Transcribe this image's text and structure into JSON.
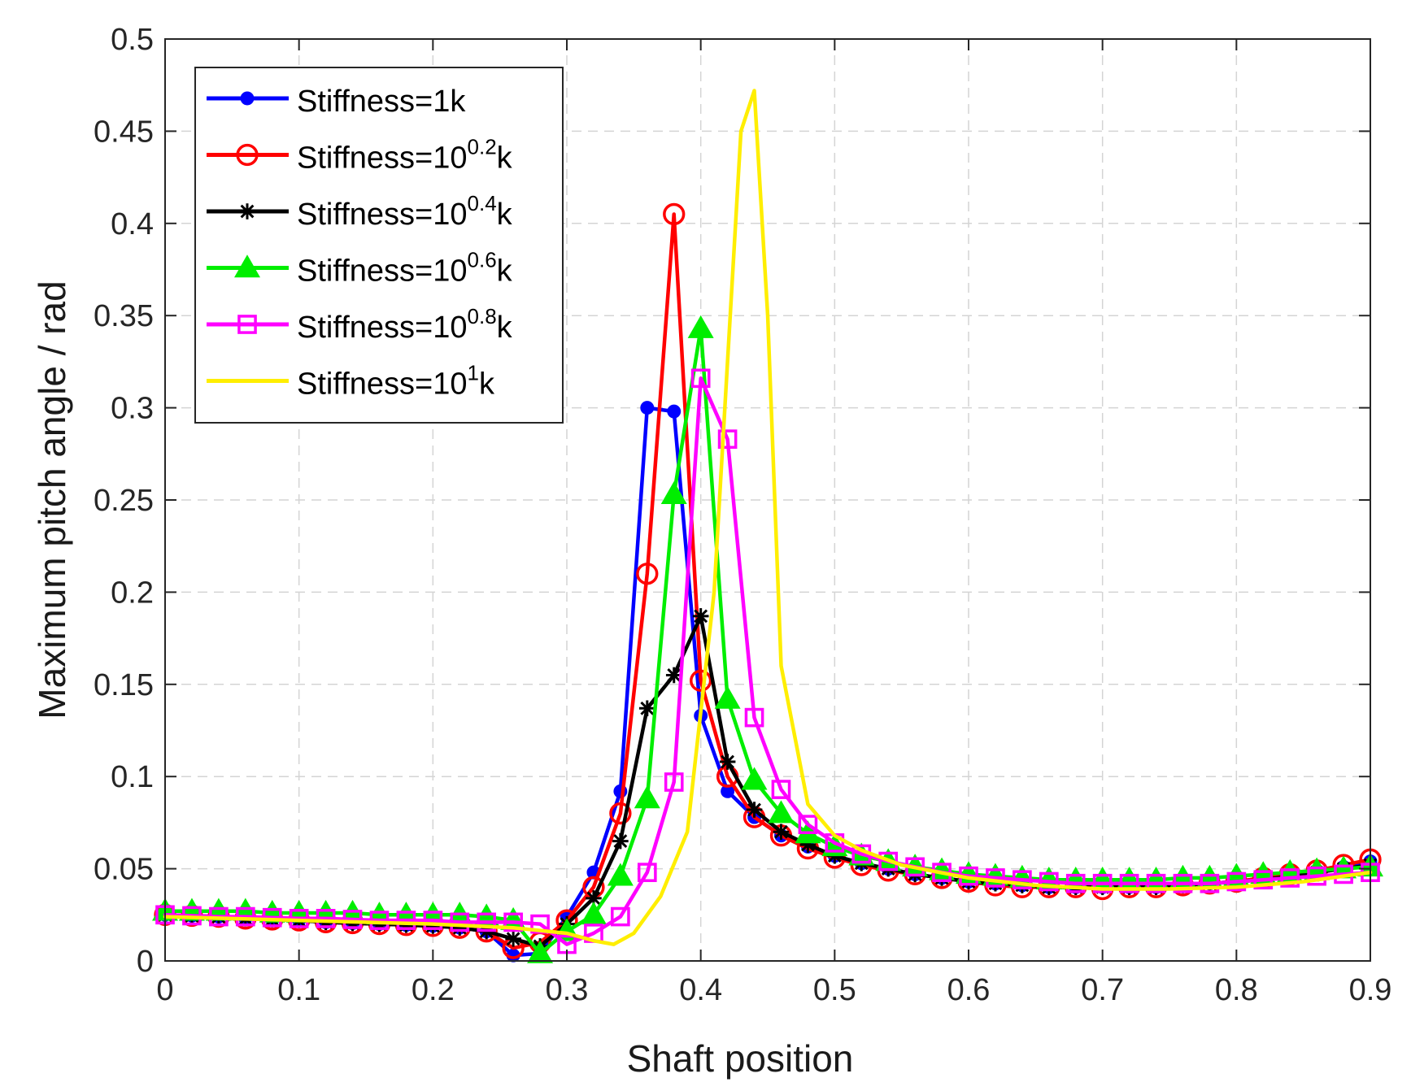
{
  "chart_data": {
    "type": "line",
    "title": "",
    "xlabel": "Shaft position",
    "ylabel": "Maximum pitch angle / rad",
    "xlim": [
      0,
      0.9
    ],
    "ylim": [
      0,
      0.5
    ],
    "xticks": [
      0,
      0.1,
      0.2,
      0.3,
      0.4,
      0.5,
      0.6,
      0.7,
      0.8,
      0.9
    ],
    "xtick_labels": [
      "0",
      "0.1",
      "0.2",
      "0.3",
      "0.4",
      "0.5",
      "0.6",
      "0.7",
      "0.8",
      "0.9"
    ],
    "yticks": [
      0,
      0.05,
      0.1,
      0.15,
      0.2,
      0.25,
      0.3,
      0.35,
      0.4,
      0.45,
      0.5
    ],
    "ytick_labels": [
      "0",
      "0.05",
      "0.1",
      "0.15",
      "0.2",
      "0.25",
      "0.3",
      "0.35",
      "0.4",
      "0.45",
      "0.5"
    ],
    "grid": true,
    "legend_position": "top-left",
    "series": [
      {
        "name": "Stiffness=1k",
        "label_base": "Stiffness=1k",
        "label_sup": "",
        "label_tail": "",
        "color": "#0000ff",
        "marker": "dot",
        "x": [
          0,
          0.02,
          0.04,
          0.06,
          0.08,
          0.1,
          0.12,
          0.14,
          0.16,
          0.18,
          0.2,
          0.22,
          0.24,
          0.26,
          0.28,
          0.3,
          0.32,
          0.34,
          0.36,
          0.38,
          0.4,
          0.42,
          0.44,
          0.46,
          0.48,
          0.5,
          0.52,
          0.54,
          0.56,
          0.58,
          0.6,
          0.62,
          0.64,
          0.66,
          0.68,
          0.7,
          0.72,
          0.74,
          0.76,
          0.78,
          0.8,
          0.82,
          0.84,
          0.86,
          0.88,
          0.9
        ],
        "y": [
          0.025,
          0.0245,
          0.024,
          0.023,
          0.0225,
          0.022,
          0.021,
          0.0205,
          0.02,
          0.0195,
          0.019,
          0.018,
          0.016,
          0.003,
          0.004,
          0.024,
          0.048,
          0.092,
          0.3,
          0.298,
          0.133,
          0.092,
          0.078,
          0.068,
          0.062,
          0.057,
          0.053,
          0.05,
          0.047,
          0.045,
          0.043,
          0.042,
          0.041,
          0.04,
          0.04,
          0.04,
          0.04,
          0.04,
          0.041,
          0.042,
          0.043,
          0.045,
          0.047,
          0.049,
          0.051,
          0.054
        ]
      },
      {
        "name": "Stiffness=10^0.2k",
        "label_base": "Stiffness=10",
        "label_sup": "0.2",
        "label_tail": "k",
        "color": "#ff0000",
        "marker": "circle",
        "x": [
          0,
          0.02,
          0.04,
          0.06,
          0.08,
          0.1,
          0.12,
          0.14,
          0.16,
          0.18,
          0.2,
          0.22,
          0.24,
          0.26,
          0.28,
          0.3,
          0.32,
          0.34,
          0.36,
          0.38,
          0.4,
          0.42,
          0.44,
          0.46,
          0.48,
          0.5,
          0.52,
          0.54,
          0.56,
          0.58,
          0.6,
          0.62,
          0.64,
          0.66,
          0.68,
          0.7,
          0.72,
          0.74,
          0.76,
          0.78,
          0.8,
          0.82,
          0.84,
          0.86,
          0.88,
          0.9
        ],
        "y": [
          0.025,
          0.0245,
          0.024,
          0.023,
          0.0225,
          0.022,
          0.021,
          0.0205,
          0.02,
          0.0195,
          0.019,
          0.018,
          0.016,
          0.007,
          0.01,
          0.022,
          0.04,
          0.08,
          0.21,
          0.405,
          0.152,
          0.1,
          0.078,
          0.068,
          0.061,
          0.056,
          0.052,
          0.049,
          0.047,
          0.045,
          0.043,
          0.041,
          0.04,
          0.04,
          0.04,
          0.039,
          0.04,
          0.04,
          0.041,
          0.042,
          0.043,
          0.045,
          0.047,
          0.049,
          0.052,
          0.055
        ]
      },
      {
        "name": "Stiffness=10^0.4k",
        "label_base": "Stiffness=10",
        "label_sup": "0.4",
        "label_tail": "k",
        "color": "#000000",
        "marker": "star",
        "x": [
          0,
          0.02,
          0.04,
          0.06,
          0.08,
          0.1,
          0.12,
          0.14,
          0.16,
          0.18,
          0.2,
          0.22,
          0.24,
          0.26,
          0.28,
          0.3,
          0.32,
          0.34,
          0.36,
          0.38,
          0.4,
          0.42,
          0.44,
          0.46,
          0.48,
          0.5,
          0.52,
          0.54,
          0.56,
          0.58,
          0.6,
          0.62,
          0.64,
          0.66,
          0.68,
          0.7,
          0.72,
          0.74,
          0.76,
          0.78,
          0.8,
          0.82,
          0.84,
          0.86,
          0.88,
          0.9
        ],
        "y": [
          0.025,
          0.0245,
          0.024,
          0.023,
          0.0225,
          0.022,
          0.021,
          0.0205,
          0.02,
          0.0195,
          0.019,
          0.018,
          0.016,
          0.012,
          0.008,
          0.02,
          0.034,
          0.065,
          0.137,
          0.155,
          0.187,
          0.108,
          0.082,
          0.07,
          0.063,
          0.057,
          0.053,
          0.05,
          0.047,
          0.045,
          0.043,
          0.042,
          0.041,
          0.04,
          0.04,
          0.04,
          0.04,
          0.04,
          0.041,
          0.042,
          0.043,
          0.044,
          0.046,
          0.048,
          0.05,
          0.052
        ]
      },
      {
        "name": "Stiffness=10^0.6k",
        "label_base": "Stiffness=10",
        "label_sup": "0.6",
        "label_tail": "k",
        "color": "#00ee00",
        "marker": "triangle",
        "x": [
          0,
          0.02,
          0.04,
          0.06,
          0.08,
          0.1,
          0.12,
          0.14,
          0.16,
          0.18,
          0.2,
          0.22,
          0.24,
          0.26,
          0.28,
          0.3,
          0.32,
          0.34,
          0.36,
          0.38,
          0.4,
          0.42,
          0.44,
          0.46,
          0.48,
          0.5,
          0.52,
          0.54,
          0.56,
          0.58,
          0.6,
          0.62,
          0.64,
          0.66,
          0.68,
          0.7,
          0.72,
          0.74,
          0.76,
          0.78,
          0.8,
          0.82,
          0.84,
          0.86,
          0.88,
          0.9
        ],
        "y": [
          0.027,
          0.027,
          0.027,
          0.027,
          0.026,
          0.026,
          0.026,
          0.026,
          0.025,
          0.025,
          0.025,
          0.025,
          0.024,
          0.022,
          0.004,
          0.016,
          0.025,
          0.046,
          0.088,
          0.253,
          0.343,
          0.142,
          0.098,
          0.08,
          0.069,
          0.062,
          0.057,
          0.054,
          0.051,
          0.049,
          0.047,
          0.046,
          0.045,
          0.044,
          0.044,
          0.044,
          0.044,
          0.044,
          0.045,
          0.045,
          0.046,
          0.047,
          0.048,
          0.049,
          0.05,
          0.051
        ]
      },
      {
        "name": "Stiffness=10^0.8k",
        "label_base": "Stiffness=10",
        "label_sup": "0.8",
        "label_tail": "k",
        "color": "#ff00ff",
        "marker": "square",
        "x": [
          0,
          0.02,
          0.04,
          0.06,
          0.08,
          0.1,
          0.12,
          0.14,
          0.16,
          0.18,
          0.2,
          0.22,
          0.24,
          0.26,
          0.28,
          0.3,
          0.32,
          0.34,
          0.36,
          0.38,
          0.4,
          0.42,
          0.44,
          0.46,
          0.48,
          0.5,
          0.52,
          0.54,
          0.56,
          0.58,
          0.6,
          0.62,
          0.64,
          0.66,
          0.68,
          0.7,
          0.72,
          0.74,
          0.76,
          0.78,
          0.8,
          0.82,
          0.84,
          0.86,
          0.88,
          0.9
        ],
        "y": [
          0.025,
          0.0245,
          0.024,
          0.024,
          0.0235,
          0.023,
          0.023,
          0.0225,
          0.022,
          0.022,
          0.022,
          0.021,
          0.021,
          0.021,
          0.02,
          0.009,
          0.015,
          0.024,
          0.048,
          0.097,
          0.316,
          0.283,
          0.132,
          0.093,
          0.074,
          0.064,
          0.058,
          0.054,
          0.051,
          0.048,
          0.046,
          0.045,
          0.044,
          0.043,
          0.042,
          0.042,
          0.042,
          0.042,
          0.042,
          0.042,
          0.043,
          0.044,
          0.045,
          0.046,
          0.047,
          0.048
        ]
      },
      {
        "name": "Stiffness=10^1k",
        "label_base": "Stiffness=10",
        "label_sup": "1",
        "label_tail": "k",
        "color": "#ffee00",
        "marker": "none",
        "x": [
          0,
          0.1,
          0.2,
          0.26,
          0.3,
          0.32,
          0.335,
          0.35,
          0.37,
          0.39,
          0.41,
          0.43,
          0.44,
          0.45,
          0.46,
          0.48,
          0.5,
          0.52,
          0.55,
          0.6,
          0.65,
          0.7,
          0.75,
          0.8,
          0.85,
          0.9
        ],
        "y": [
          0.024,
          0.022,
          0.02,
          0.018,
          0.015,
          0.011,
          0.009,
          0.015,
          0.035,
          0.07,
          0.2,
          0.45,
          0.472,
          0.35,
          0.16,
          0.085,
          0.068,
          0.06,
          0.052,
          0.045,
          0.041,
          0.039,
          0.039,
          0.04,
          0.043,
          0.048
        ]
      }
    ]
  }
}
